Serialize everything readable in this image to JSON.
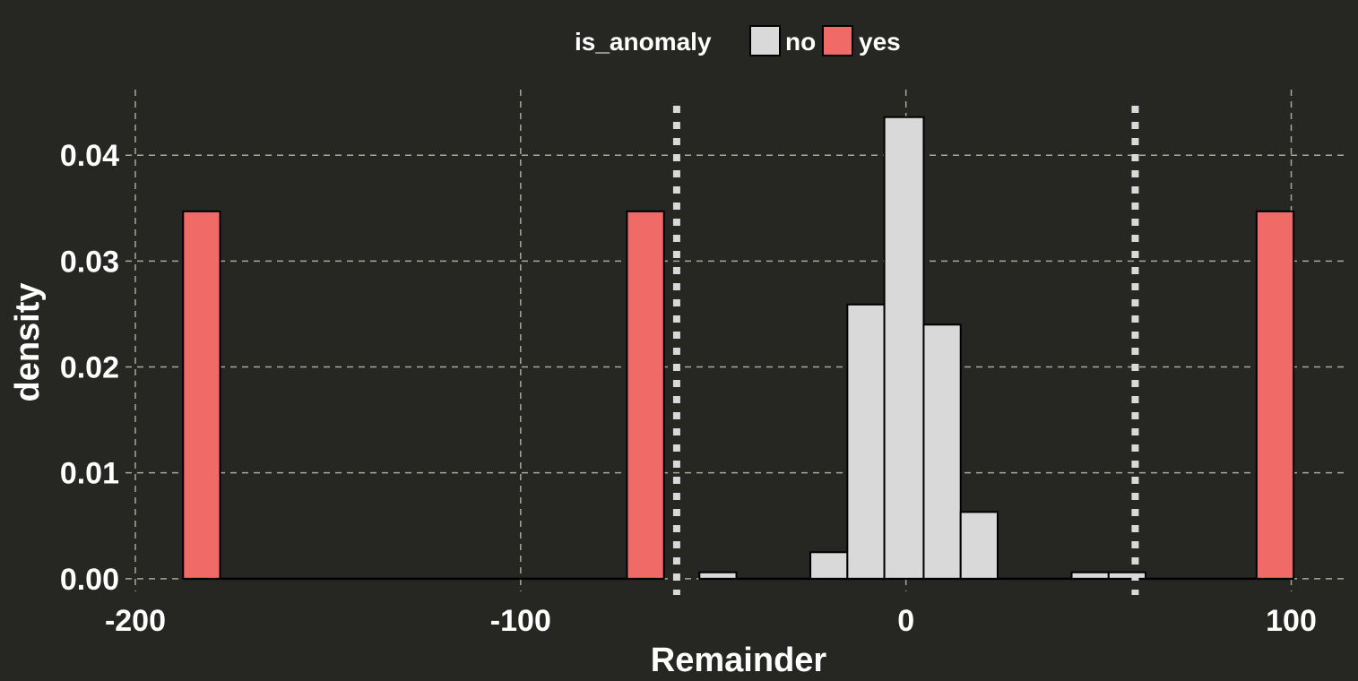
{
  "chart_data": {
    "type": "bar",
    "xlabel": "Remainder",
    "ylabel": "density",
    "xlim": [
      -210,
      115
    ],
    "ylim": [
      -0.0012,
      0.0462
    ],
    "x_ticks": [
      -200,
      -100,
      0,
      100
    ],
    "x_tick_labels": [
      "-200",
      "-100",
      "0",
      "100"
    ],
    "y_ticks": [
      0,
      0.01,
      0.02,
      0.03,
      0.04
    ],
    "y_tick_labels": [
      "0.00",
      "0.01",
      "0.02",
      "0.03",
      "0.04"
    ],
    "grid": true,
    "legend": {
      "title": "is_anomaly",
      "position": "top",
      "entries": [
        {
          "label": "no",
          "color": "#d9d9d9"
        },
        {
          "label": "yes",
          "color": "#f06b68"
        }
      ]
    },
    "bin_width": 9.6,
    "series": [
      {
        "name": "no",
        "color": "#d9d9d9",
        "bins": [
          {
            "x0": -53.6,
            "x1": -44.0,
            "density": 0.0006
          },
          {
            "x0": -24.8,
            "x1": -15.2,
            "density": 0.0025
          },
          {
            "x0": -15.2,
            "x1": -5.6,
            "density": 0.0259
          },
          {
            "x0": -5.6,
            "x1": 4.6,
            "density": 0.0436
          },
          {
            "x0": 4.6,
            "x1": 14.2,
            "density": 0.024
          },
          {
            "x0": 14.2,
            "x1": 23.8,
            "density": 0.0063
          },
          {
            "x0": 43.0,
            "x1": 52.6,
            "density": 0.0006
          },
          {
            "x0": 52.6,
            "x1": 62.2,
            "density": 0.0006
          }
        ]
      },
      {
        "name": "yes",
        "color": "#f06b68",
        "bins": [
          {
            "x0": -187.6,
            "x1": -178.0,
            "density": 0.0347
          },
          {
            "x0": -72.4,
            "x1": -62.8,
            "density": 0.0347
          },
          {
            "x0": 91.0,
            "x1": 100.6,
            "density": 0.0347
          }
        ]
      }
    ],
    "baseline_segments": [
      [
        -187.6,
        -62.8
      ],
      [
        -53.6,
        62.2
      ],
      [
        62.2,
        100.6
      ]
    ],
    "threshold_lines": [
      -59.5,
      59.5
    ]
  }
}
